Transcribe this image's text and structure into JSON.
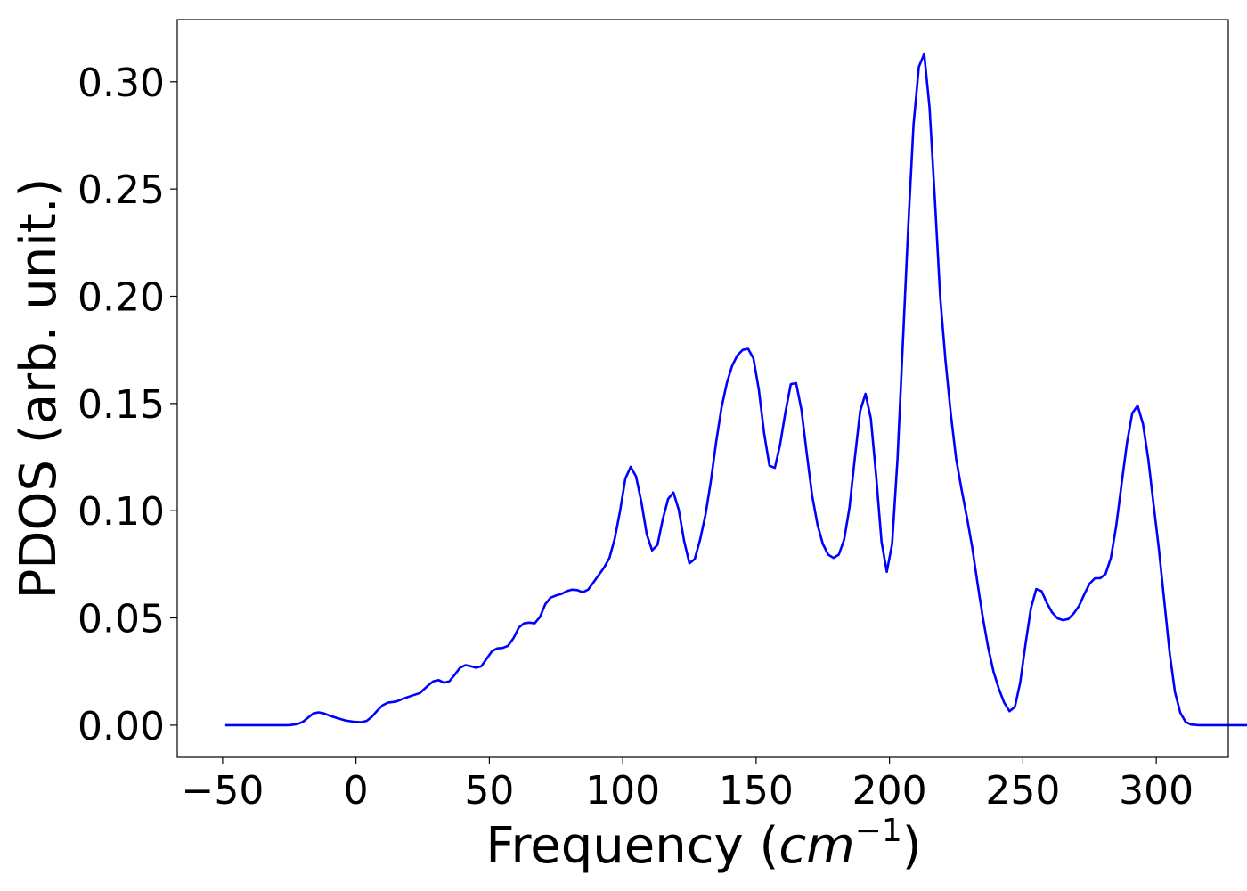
{
  "chart_data": {
    "type": "line",
    "title": "",
    "xlabel": "Frequency",
    "xlabel_unit_base": "cm",
    "xlabel_unit_exp": "−1",
    "ylabel": "PDOS (arb. unit.)",
    "xlim": [
      -67,
      327
    ],
    "ylim": [
      -0.015,
      0.329
    ],
    "x_ticks": [
      -50,
      0,
      50,
      100,
      150,
      200,
      250,
      300
    ],
    "x_tick_labels": [
      "−50",
      "0",
      "50",
      "100",
      "150",
      "200",
      "250",
      "300"
    ],
    "y_ticks": [
      0.0,
      0.05,
      0.1,
      0.15,
      0.2,
      0.25,
      0.3
    ],
    "y_tick_labels": [
      "0.00",
      "0.05",
      "0.10",
      "0.15",
      "0.20",
      "0.25",
      "0.30"
    ],
    "grid": false,
    "legend": "none",
    "series": [
      {
        "color": "#0000ff",
        "points": [
          [
            -49,
            0.0
          ],
          [
            -40,
            0.0
          ],
          [
            -30,
            0.0
          ],
          [
            -25,
            0.0
          ],
          [
            -22,
            0.0005
          ],
          [
            -20,
            0.0015
          ],
          [
            -18,
            0.0035
          ],
          [
            -16,
            0.0055
          ],
          [
            -14,
            0.006
          ],
          [
            -12,
            0.0055
          ],
          [
            -10,
            0.0045
          ],
          [
            -7,
            0.0033
          ],
          [
            -4,
            0.0022
          ],
          [
            -1,
            0.0016
          ],
          [
            2,
            0.0014
          ],
          [
            4,
            0.002
          ],
          [
            6,
            0.004
          ],
          [
            8,
            0.0068
          ],
          [
            10,
            0.0093
          ],
          [
            12,
            0.0105
          ],
          [
            15,
            0.011
          ],
          [
            18,
            0.0125
          ],
          [
            21,
            0.0138
          ],
          [
            24,
            0.015
          ],
          [
            27,
            0.0185
          ],
          [
            29,
            0.0205
          ],
          [
            31,
            0.021
          ],
          [
            33,
            0.0198
          ],
          [
            35,
            0.0205
          ],
          [
            37,
            0.0235
          ],
          [
            39,
            0.0268
          ],
          [
            41,
            0.028
          ],
          [
            43,
            0.0275
          ],
          [
            45,
            0.0268
          ],
          [
            47,
            0.0275
          ],
          [
            49,
            0.031
          ],
          [
            51,
            0.0345
          ],
          [
            53,
            0.0358
          ],
          [
            55,
            0.036
          ],
          [
            57,
            0.037
          ],
          [
            59,
            0.0405
          ],
          [
            61,
            0.0455
          ],
          [
            63,
            0.0475
          ],
          [
            65,
            0.0478
          ],
          [
            67,
            0.0475
          ],
          [
            69,
            0.0505
          ],
          [
            71,
            0.0565
          ],
          [
            73,
            0.0595
          ],
          [
            75,
            0.0605
          ],
          [
            77,
            0.0612
          ],
          [
            79,
            0.0625
          ],
          [
            81,
            0.0632
          ],
          [
            83,
            0.063
          ],
          [
            85,
            0.062
          ],
          [
            87,
            0.0632
          ],
          [
            89,
            0.0665
          ],
          [
            91,
            0.07
          ],
          [
            93,
            0.0735
          ],
          [
            95,
            0.078
          ],
          [
            97,
            0.087
          ],
          [
            99,
            0.1
          ],
          [
            101,
            0.115
          ],
          [
            103,
            0.1205
          ],
          [
            105,
            0.116
          ],
          [
            107,
            0.104
          ],
          [
            109,
            0.089
          ],
          [
            111,
            0.0815
          ],
          [
            113,
            0.084
          ],
          [
            115,
            0.096
          ],
          [
            117,
            0.1055
          ],
          [
            119,
            0.1085
          ],
          [
            121,
            0.1005
          ],
          [
            123,
            0.086
          ],
          [
            125,
            0.0755
          ],
          [
            127,
            0.0775
          ],
          [
            129,
            0.0865
          ],
          [
            131,
            0.098
          ],
          [
            133,
            0.1135
          ],
          [
            135,
            0.132
          ],
          [
            137,
            0.148
          ],
          [
            139,
            0.1595
          ],
          [
            141,
            0.1675
          ],
          [
            143,
            0.1725
          ],
          [
            145,
            0.175
          ],
          [
            147,
            0.1755
          ],
          [
            149,
            0.171
          ],
          [
            151,
            0.1565
          ],
          [
            153,
            0.136
          ],
          [
            155,
            0.121
          ],
          [
            157,
            0.12
          ],
          [
            159,
            0.131
          ],
          [
            161,
            0.146
          ],
          [
            163,
            0.159
          ],
          [
            165,
            0.1595
          ],
          [
            167,
            0.147
          ],
          [
            169,
            0.1265
          ],
          [
            171,
            0.107
          ],
          [
            173,
            0.0935
          ],
          [
            175,
            0.0845
          ],
          [
            177,
            0.0795
          ],
          [
            179,
            0.078
          ],
          [
            181,
            0.0795
          ],
          [
            183,
            0.0865
          ],
          [
            185,
            0.1015
          ],
          [
            187,
            0.1245
          ],
          [
            189,
            0.1465
          ],
          [
            191,
            0.1545
          ],
          [
            193,
            0.143
          ],
          [
            195,
            0.116
          ],
          [
            197,
            0.0855
          ],
          [
            199,
            0.0715
          ],
          [
            201,
            0.0845
          ],
          [
            203,
            0.124
          ],
          [
            205,
            0.178
          ],
          [
            207,
            0.232
          ],
          [
            209,
            0.28
          ],
          [
            211,
            0.307
          ],
          [
            213,
            0.313
          ],
          [
            215,
            0.288
          ],
          [
            217,
            0.245
          ],
          [
            219,
            0.2
          ],
          [
            221,
            0.17
          ],
          [
            223,
            0.145
          ],
          [
            225,
            0.124
          ],
          [
            227,
            0.11
          ],
          [
            229,
            0.097
          ],
          [
            231,
            0.083
          ],
          [
            233,
            0.066
          ],
          [
            235,
            0.05
          ],
          [
            237,
            0.036
          ],
          [
            239,
            0.025
          ],
          [
            241,
            0.017
          ],
          [
            243,
            0.0105
          ],
          [
            245,
            0.0065
          ],
          [
            247,
            0.0085
          ],
          [
            249,
            0.02
          ],
          [
            251,
            0.038
          ],
          [
            253,
            0.0545
          ],
          [
            255,
            0.0635
          ],
          [
            257,
            0.0625
          ],
          [
            259,
            0.057
          ],
          [
            261,
            0.0525
          ],
          [
            263,
            0.0498
          ],
          [
            265,
            0.049
          ],
          [
            267,
            0.0495
          ],
          [
            269,
            0.052
          ],
          [
            271,
            0.0555
          ],
          [
            273,
            0.061
          ],
          [
            275,
            0.066
          ],
          [
            277,
            0.0685
          ],
          [
            279,
            0.0685
          ],
          [
            281,
            0.0705
          ],
          [
            283,
            0.078
          ],
          [
            285,
            0.093
          ],
          [
            287,
            0.1125
          ],
          [
            289,
            0.1315
          ],
          [
            291,
            0.1455
          ],
          [
            293,
            0.149
          ],
          [
            295,
            0.1405
          ],
          [
            297,
            0.124
          ],
          [
            299,
            0.103
          ],
          [
            301,
            0.082
          ],
          [
            303,
            0.058
          ],
          [
            305,
            0.034
          ],
          [
            307,
            0.0155
          ],
          [
            309,
            0.0058
          ],
          [
            311,
            0.0015
          ],
          [
            313,
            0.0003
          ],
          [
            316,
            0.0
          ],
          [
            325,
            0.0
          ],
          [
            330,
            0.0
          ],
          [
            338,
            0.0
          ]
        ]
      }
    ]
  }
}
